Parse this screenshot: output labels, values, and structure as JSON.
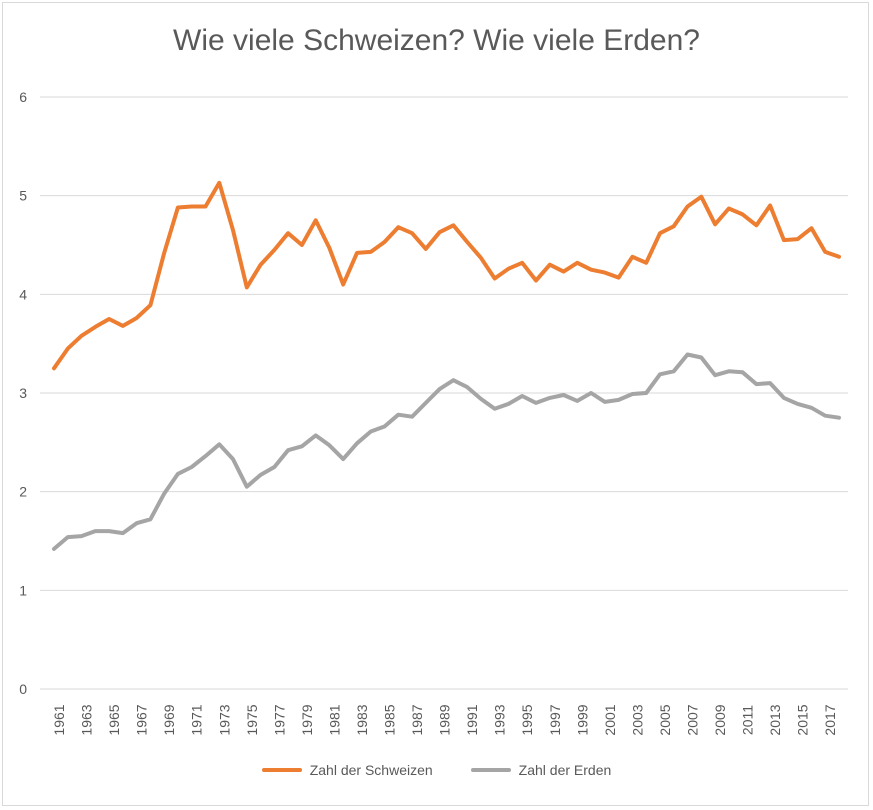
{
  "chart_data": {
    "type": "line",
    "title": "Wie viele Schweizen? Wie viele Erden?",
    "xlabel": "",
    "ylabel": "",
    "ylim": [
      0,
      6
    ],
    "yticks": [
      0,
      1,
      2,
      3,
      4,
      5,
      6
    ],
    "grid": true,
    "legend_position": "bottom",
    "x": [
      1961,
      1962,
      1963,
      1964,
      1965,
      1966,
      1967,
      1968,
      1969,
      1970,
      1971,
      1972,
      1973,
      1974,
      1975,
      1976,
      1977,
      1978,
      1979,
      1980,
      1981,
      1982,
      1983,
      1984,
      1985,
      1986,
      1987,
      1988,
      1989,
      1990,
      1991,
      1992,
      1993,
      1994,
      1995,
      1996,
      1997,
      1998,
      1999,
      2000,
      2001,
      2002,
      2003,
      2004,
      2005,
      2006,
      2007,
      2008,
      2009,
      2010,
      2011,
      2012,
      2013,
      2014,
      2015,
      2016,
      2017,
      2018
    ],
    "xtick_labels": [
      "1961",
      "1963",
      "1965",
      "1967",
      "1969",
      "1971",
      "1973",
      "1975",
      "1977",
      "1979",
      "1981",
      "1983",
      "1985",
      "1987",
      "1989",
      "1991",
      "1993",
      "1995",
      "1997",
      "1999",
      "2001",
      "2003",
      "2005",
      "2007",
      "2009",
      "2011",
      "2013",
      "2015",
      "2017"
    ],
    "series": [
      {
        "name": "Zahl der Schweizen",
        "color": "#ed7d31",
        "values": [
          3.25,
          3.45,
          3.58,
          3.67,
          3.75,
          3.68,
          3.76,
          3.89,
          4.42,
          4.88,
          4.89,
          4.89,
          5.13,
          4.65,
          4.07,
          4.3,
          4.45,
          4.62,
          4.5,
          4.75,
          4.47,
          4.1,
          4.42,
          4.43,
          4.53,
          4.68,
          4.62,
          4.46,
          4.63,
          4.7,
          4.53,
          4.37,
          4.16,
          4.26,
          4.32,
          4.14,
          4.3,
          4.23,
          4.32,
          4.25,
          4.22,
          4.17,
          4.38,
          4.32,
          4.62,
          4.69,
          4.89,
          4.99,
          4.71,
          4.87,
          4.81,
          4.7,
          4.9,
          4.55,
          4.56,
          4.67,
          4.43,
          4.38
        ]
      },
      {
        "name": "Zahl der Erden",
        "color": "#a5a5a5",
        "values": [
          1.42,
          1.54,
          1.55,
          1.6,
          1.6,
          1.58,
          1.68,
          1.72,
          1.98,
          2.18,
          2.25,
          2.36,
          2.48,
          2.33,
          2.05,
          2.17,
          2.25,
          2.42,
          2.46,
          2.57,
          2.47,
          2.33,
          2.49,
          2.61,
          2.66,
          2.78,
          2.76,
          2.9,
          3.04,
          3.13,
          3.06,
          2.94,
          2.84,
          2.89,
          2.97,
          2.9,
          2.95,
          2.98,
          2.92,
          3.0,
          2.91,
          2.93,
          2.99,
          3.0,
          3.19,
          3.22,
          3.39,
          3.36,
          3.18,
          3.22,
          3.21,
          3.09,
          3.1,
          2.95,
          2.89,
          2.85,
          2.77,
          2.75
        ]
      }
    ]
  }
}
